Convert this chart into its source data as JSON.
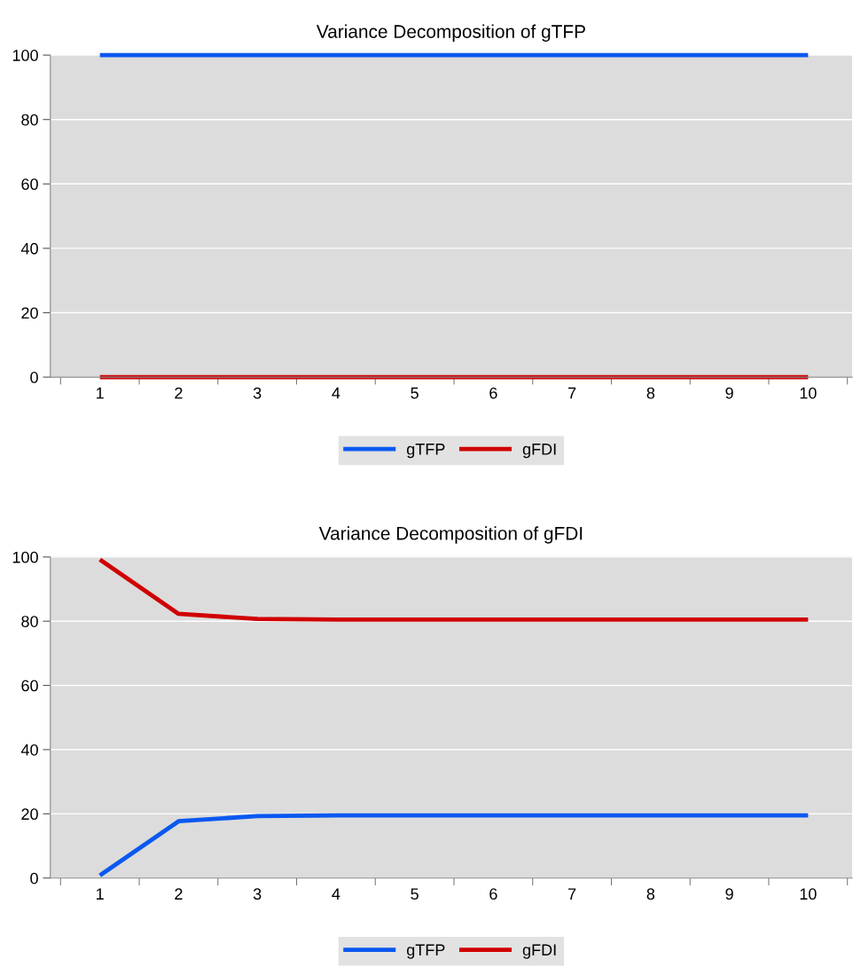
{
  "chart_data": [
    {
      "type": "line",
      "title": "Variance Decomposition of gTFP",
      "categories": [
        "1",
        "2",
        "3",
        "4",
        "5",
        "6",
        "7",
        "8",
        "9",
        "10"
      ],
      "series": [
        {
          "name": "gTFP",
          "color": "#0a58f0",
          "values": [
            100,
            100,
            100,
            100,
            100,
            100,
            100,
            100,
            100,
            100
          ]
        },
        {
          "name": "gFDI",
          "color": "#d00000",
          "values": [
            0,
            0,
            0,
            0,
            0,
            0,
            0,
            0,
            0,
            0
          ]
        }
      ],
      "ylim": [
        0,
        100
      ],
      "yticks": [
        0,
        20,
        40,
        60,
        80,
        100
      ],
      "grid": "y",
      "legend": "bottom"
    },
    {
      "type": "line",
      "title": "Variance Decomposition of gFDI",
      "categories": [
        "1",
        "2",
        "3",
        "4",
        "5",
        "6",
        "7",
        "8",
        "9",
        "10"
      ],
      "series": [
        {
          "name": "gTFP",
          "color": "#0a58f0",
          "values": [
            0.8,
            17.7,
            19.3,
            19.5,
            19.5,
            19.5,
            19.5,
            19.5,
            19.5,
            19.5
          ]
        },
        {
          "name": "gFDI",
          "color": "#d00000",
          "values": [
            99.2,
            82.3,
            80.7,
            80.5,
            80.5,
            80.5,
            80.5,
            80.5,
            80.5,
            80.5
          ]
        }
      ],
      "ylim": [
        0,
        100
      ],
      "yticks": [
        0,
        20,
        40,
        60,
        80,
        100
      ],
      "grid": "y",
      "legend": "bottom"
    }
  ]
}
